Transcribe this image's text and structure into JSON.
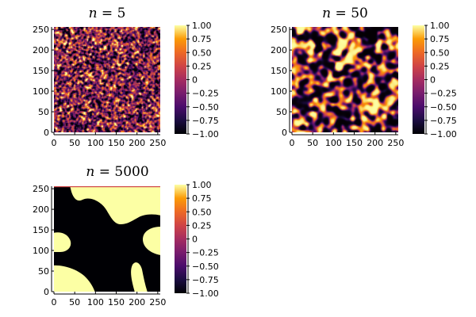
{
  "chart_data": [
    {
      "type": "heatmap",
      "title": "n = 5",
      "title_var": "n",
      "title_eq": " = ",
      "title_val": "5",
      "xlim": [
        0,
        256
      ],
      "ylim": [
        0,
        256
      ],
      "x_ticks": [
        "0",
        "50",
        "100",
        "150",
        "200",
        "250"
      ],
      "y_ticks": [
        "0",
        "50",
        "100",
        "150",
        "200",
        "250"
      ],
      "colorbar": {
        "colormap": "inferno",
        "range": [
          -1.0,
          1.0
        ],
        "ticks": [
          "1.00",
          "0.75",
          "0.50",
          "0.25",
          "0",
          "−0.25",
          "−0.50",
          "−0.75",
          "−1.00"
        ]
      },
      "pattern": "fine random noise"
    },
    {
      "type": "heatmap",
      "title": "n = 50",
      "title_var": "n",
      "title_eq": " = ",
      "title_val": "50",
      "xlim": [
        0,
        256
      ],
      "ylim": [
        0,
        256
      ],
      "x_ticks": [
        "0",
        "50",
        "100",
        "150",
        "200",
        "250"
      ],
      "y_ticks": [
        "0",
        "50",
        "100",
        "150",
        "200",
        "250"
      ],
      "colorbar": {
        "colormap": "inferno",
        "range": [
          -1.0,
          1.0
        ],
        "ticks": [
          "1.00",
          "0.75",
          "0.50",
          "0.25",
          "0",
          "−0.25",
          "−0.50",
          "−0.75",
          "−1.00"
        ]
      },
      "pattern": "coarsening labyrinth of two phases"
    },
    {
      "type": "heatmap",
      "title": "n = 5000",
      "title_var": "n",
      "title_eq": " = ",
      "title_val": "5000",
      "xlim": [
        0,
        256
      ],
      "ylim": [
        0,
        256
      ],
      "x_ticks": [
        "0",
        "50",
        "100",
        "150",
        "200",
        "250"
      ],
      "y_ticks": [
        "0",
        "50",
        "100",
        "150",
        "200",
        "250"
      ],
      "colorbar": {
        "colormap": "inferno",
        "range": [
          -1.0,
          1.0
        ],
        "ticks": [
          "1.00",
          "0.75",
          "0.50",
          "0.25",
          "0",
          "−0.25",
          "−0.50",
          "−0.75",
          "−1.00"
        ]
      },
      "pattern": "few large phase-separated domains"
    }
  ]
}
